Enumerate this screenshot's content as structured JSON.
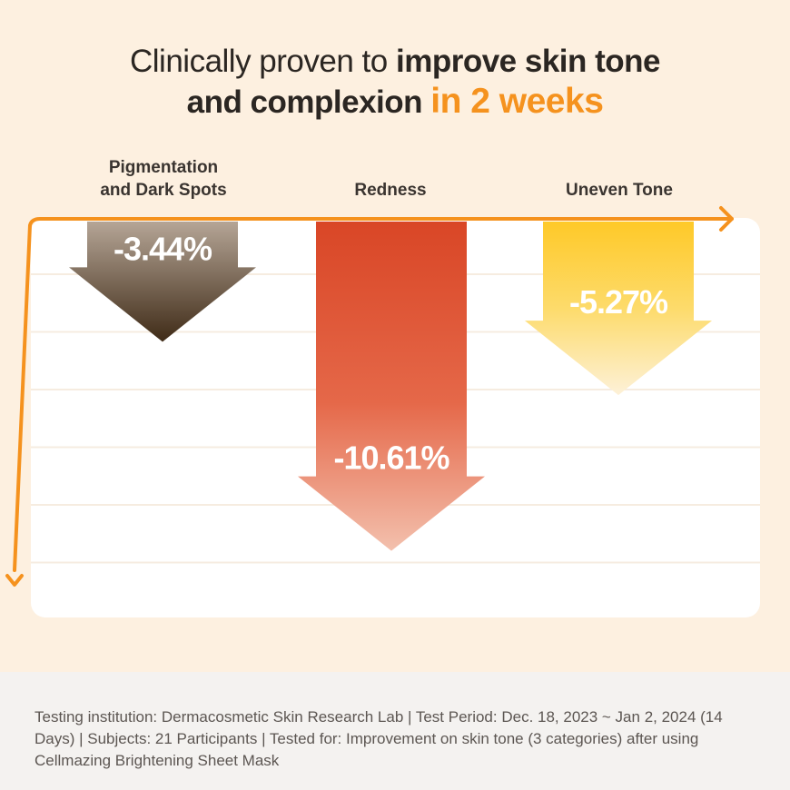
{
  "headline": {
    "line1_light": "Clinically proven to ",
    "line1_bold": "improve skin tone",
    "line2_bold": "and complexion ",
    "line2_accent": "in 2 weeks"
  },
  "chart_data": {
    "type": "bar",
    "orientation": "downward",
    "categories": [
      "Pigmentation and Dark Spots",
      "Redness",
      "Uneven Tone"
    ],
    "values": [
      -3.44,
      -10.61,
      -5.27
    ],
    "value_labels": [
      "-3.44%",
      "-10.61%",
      "-5.27%"
    ],
    "units": "%",
    "grid": true,
    "colors": {
      "pigmentation": [
        "#b5a596",
        "#3f2b17"
      ],
      "redness": [
        "#d94626",
        "#f3c0ad"
      ],
      "uneven": [
        "#fec928",
        "#fdf1d8"
      ],
      "axis": "#f5921e"
    }
  },
  "labels": {
    "cat1_line1": "Pigmentation",
    "cat1_line2": "and Dark Spots",
    "cat2": "Redness",
    "cat3": "Uneven Tone"
  },
  "footer": {
    "text": "Testing institution: Dermacosmetic Skin Research Lab | Test Period: Dec. 18, 2023 ~ Jan 2, 2024 (14 Days) | Subjects: 21 Participants | Tested for: Improvement on skin tone (3 categories) after using Cellmazing Brightening Sheet Mask"
  }
}
